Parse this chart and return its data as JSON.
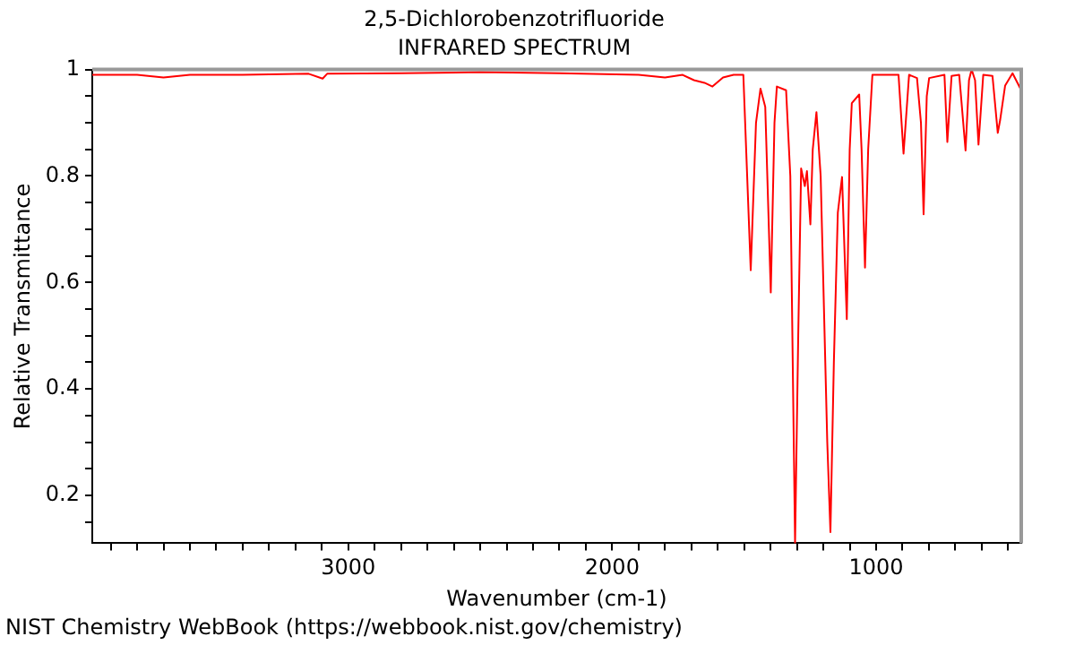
{
  "chart_data": {
    "type": "line",
    "title": "2,5-Dichlorobenzotrifluoride",
    "subtitle": "INFRARED SPECTRUM",
    "xlabel": "Wavenumber (cm-1)",
    "ylabel": "Relative Transmittance",
    "annotations": [
      "NIST Chemistry WebBook (https://webbook.nist.gov/chemistry)"
    ],
    "x": [
      3970,
      3800,
      3700,
      3600,
      3400,
      3150,
      3097,
      3080,
      2800,
      2500,
      2200,
      1900,
      1800,
      1733,
      1690,
      1650,
      1620,
      1580,
      1540,
      1503,
      1475,
      1455,
      1438,
      1420,
      1399,
      1385,
      1376,
      1341,
      1325,
      1307,
      1295,
      1284,
      1270,
      1262,
      1249,
      1240,
      1226,
      1210,
      1185,
      1173,
      1160,
      1145,
      1129,
      1111,
      1100,
      1092,
      1064,
      1055,
      1042,
      1030,
      1014,
      915,
      896,
      875,
      845,
      830,
      820,
      808,
      799,
      741,
      730,
      714,
      685,
      661,
      648,
      638,
      625,
      612,
      594,
      559,
      539,
      530,
      511,
      483,
      450
    ],
    "series": [
      {
        "color": "#ff0000",
        "values": [
          0.99,
          0.99,
          0.985,
          0.99,
          0.99,
          0.992,
          0.983,
          0.992,
          0.993,
          0.995,
          0.993,
          0.99,
          0.985,
          0.99,
          0.98,
          0.975,
          0.968,
          0.985,
          0.99,
          0.99,
          0.623,
          0.9,
          0.964,
          0.93,
          0.581,
          0.9,
          0.968,
          0.961,
          0.8,
          0.11,
          0.5,
          0.814,
          0.781,
          0.809,
          0.709,
          0.85,
          0.92,
          0.8,
          0.3,
          0.131,
          0.45,
          0.731,
          0.798,
          0.531,
          0.85,
          0.937,
          0.953,
          0.85,
          0.628,
          0.85,
          0.99,
          0.99,
          0.842,
          0.99,
          0.984,
          0.9,
          0.728,
          0.95,
          0.984,
          0.99,
          0.864,
          0.988,
          0.99,
          0.848,
          0.98,
          1.0,
          0.98,
          0.859,
          0.99,
          0.988,
          0.881,
          0.905,
          0.97,
          0.993,
          0.961
        ]
      }
    ],
    "xlim": [
      3970,
      450
    ],
    "xticks": [
      {
        "value": 3900,
        "label": null
      },
      {
        "value": 3800,
        "label": null
      },
      {
        "value": 3700,
        "label": null
      },
      {
        "value": 3600,
        "label": null
      },
      {
        "value": 3500,
        "label": null
      },
      {
        "value": 3400,
        "label": null
      },
      {
        "value": 3300,
        "label": null
      },
      {
        "value": 3200,
        "label": null
      },
      {
        "value": 3100,
        "label": null
      },
      3000,
      {
        "value": 2900,
        "label": null
      },
      {
        "value": 2800,
        "label": null
      },
      {
        "value": 2700,
        "label": null
      },
      {
        "value": 2600,
        "label": null
      },
      {
        "value": 2500,
        "label": null
      },
      {
        "value": 2400,
        "label": null
      },
      {
        "value": 2300,
        "label": null
      },
      {
        "value": 2200,
        "label": null
      },
      {
        "value": 2100,
        "label": null
      },
      2000,
      {
        "value": 1900,
        "label": null
      },
      {
        "value": 1800,
        "label": null
      },
      {
        "value": 1700,
        "label": null
      },
      {
        "value": 1600,
        "label": null
      },
      {
        "value": 1500,
        "label": null
      },
      {
        "value": 1400,
        "label": null
      },
      {
        "value": 1300,
        "label": null
      },
      {
        "value": 1200,
        "label": null
      },
      {
        "value": 1100,
        "label": null
      },
      1000,
      {
        "value": 900,
        "label": null
      },
      {
        "value": 800,
        "label": null
      },
      {
        "value": 700,
        "label": null
      },
      {
        "value": 600,
        "label": null
      },
      {
        "value": 500,
        "label": null
      }
    ],
    "ylim": [
      0.11,
      1
    ],
    "yticks": [
      {
        "value": 0.15,
        "label": null
      },
      0.2,
      {
        "value": 0.25,
        "label": null
      },
      {
        "value": 0.3,
        "label": null
      },
      {
        "value": 0.35,
        "label": null
      },
      0.4,
      {
        "value": 0.45,
        "label": null
      },
      {
        "value": 0.5,
        "label": null
      },
      {
        "value": 0.55,
        "label": null
      },
      0.6,
      {
        "value": 0.65,
        "label": null
      },
      {
        "value": 0.7,
        "label": null
      },
      {
        "value": 0.75,
        "label": null
      },
      0.8,
      {
        "value": 0.85,
        "label": null
      },
      {
        "value": 0.9,
        "label": null
      },
      {
        "value": 0.95,
        "label": null
      },
      1
    ],
    "grid": false,
    "legend": false,
    "marker": "none",
    "line_style": "solid"
  }
}
